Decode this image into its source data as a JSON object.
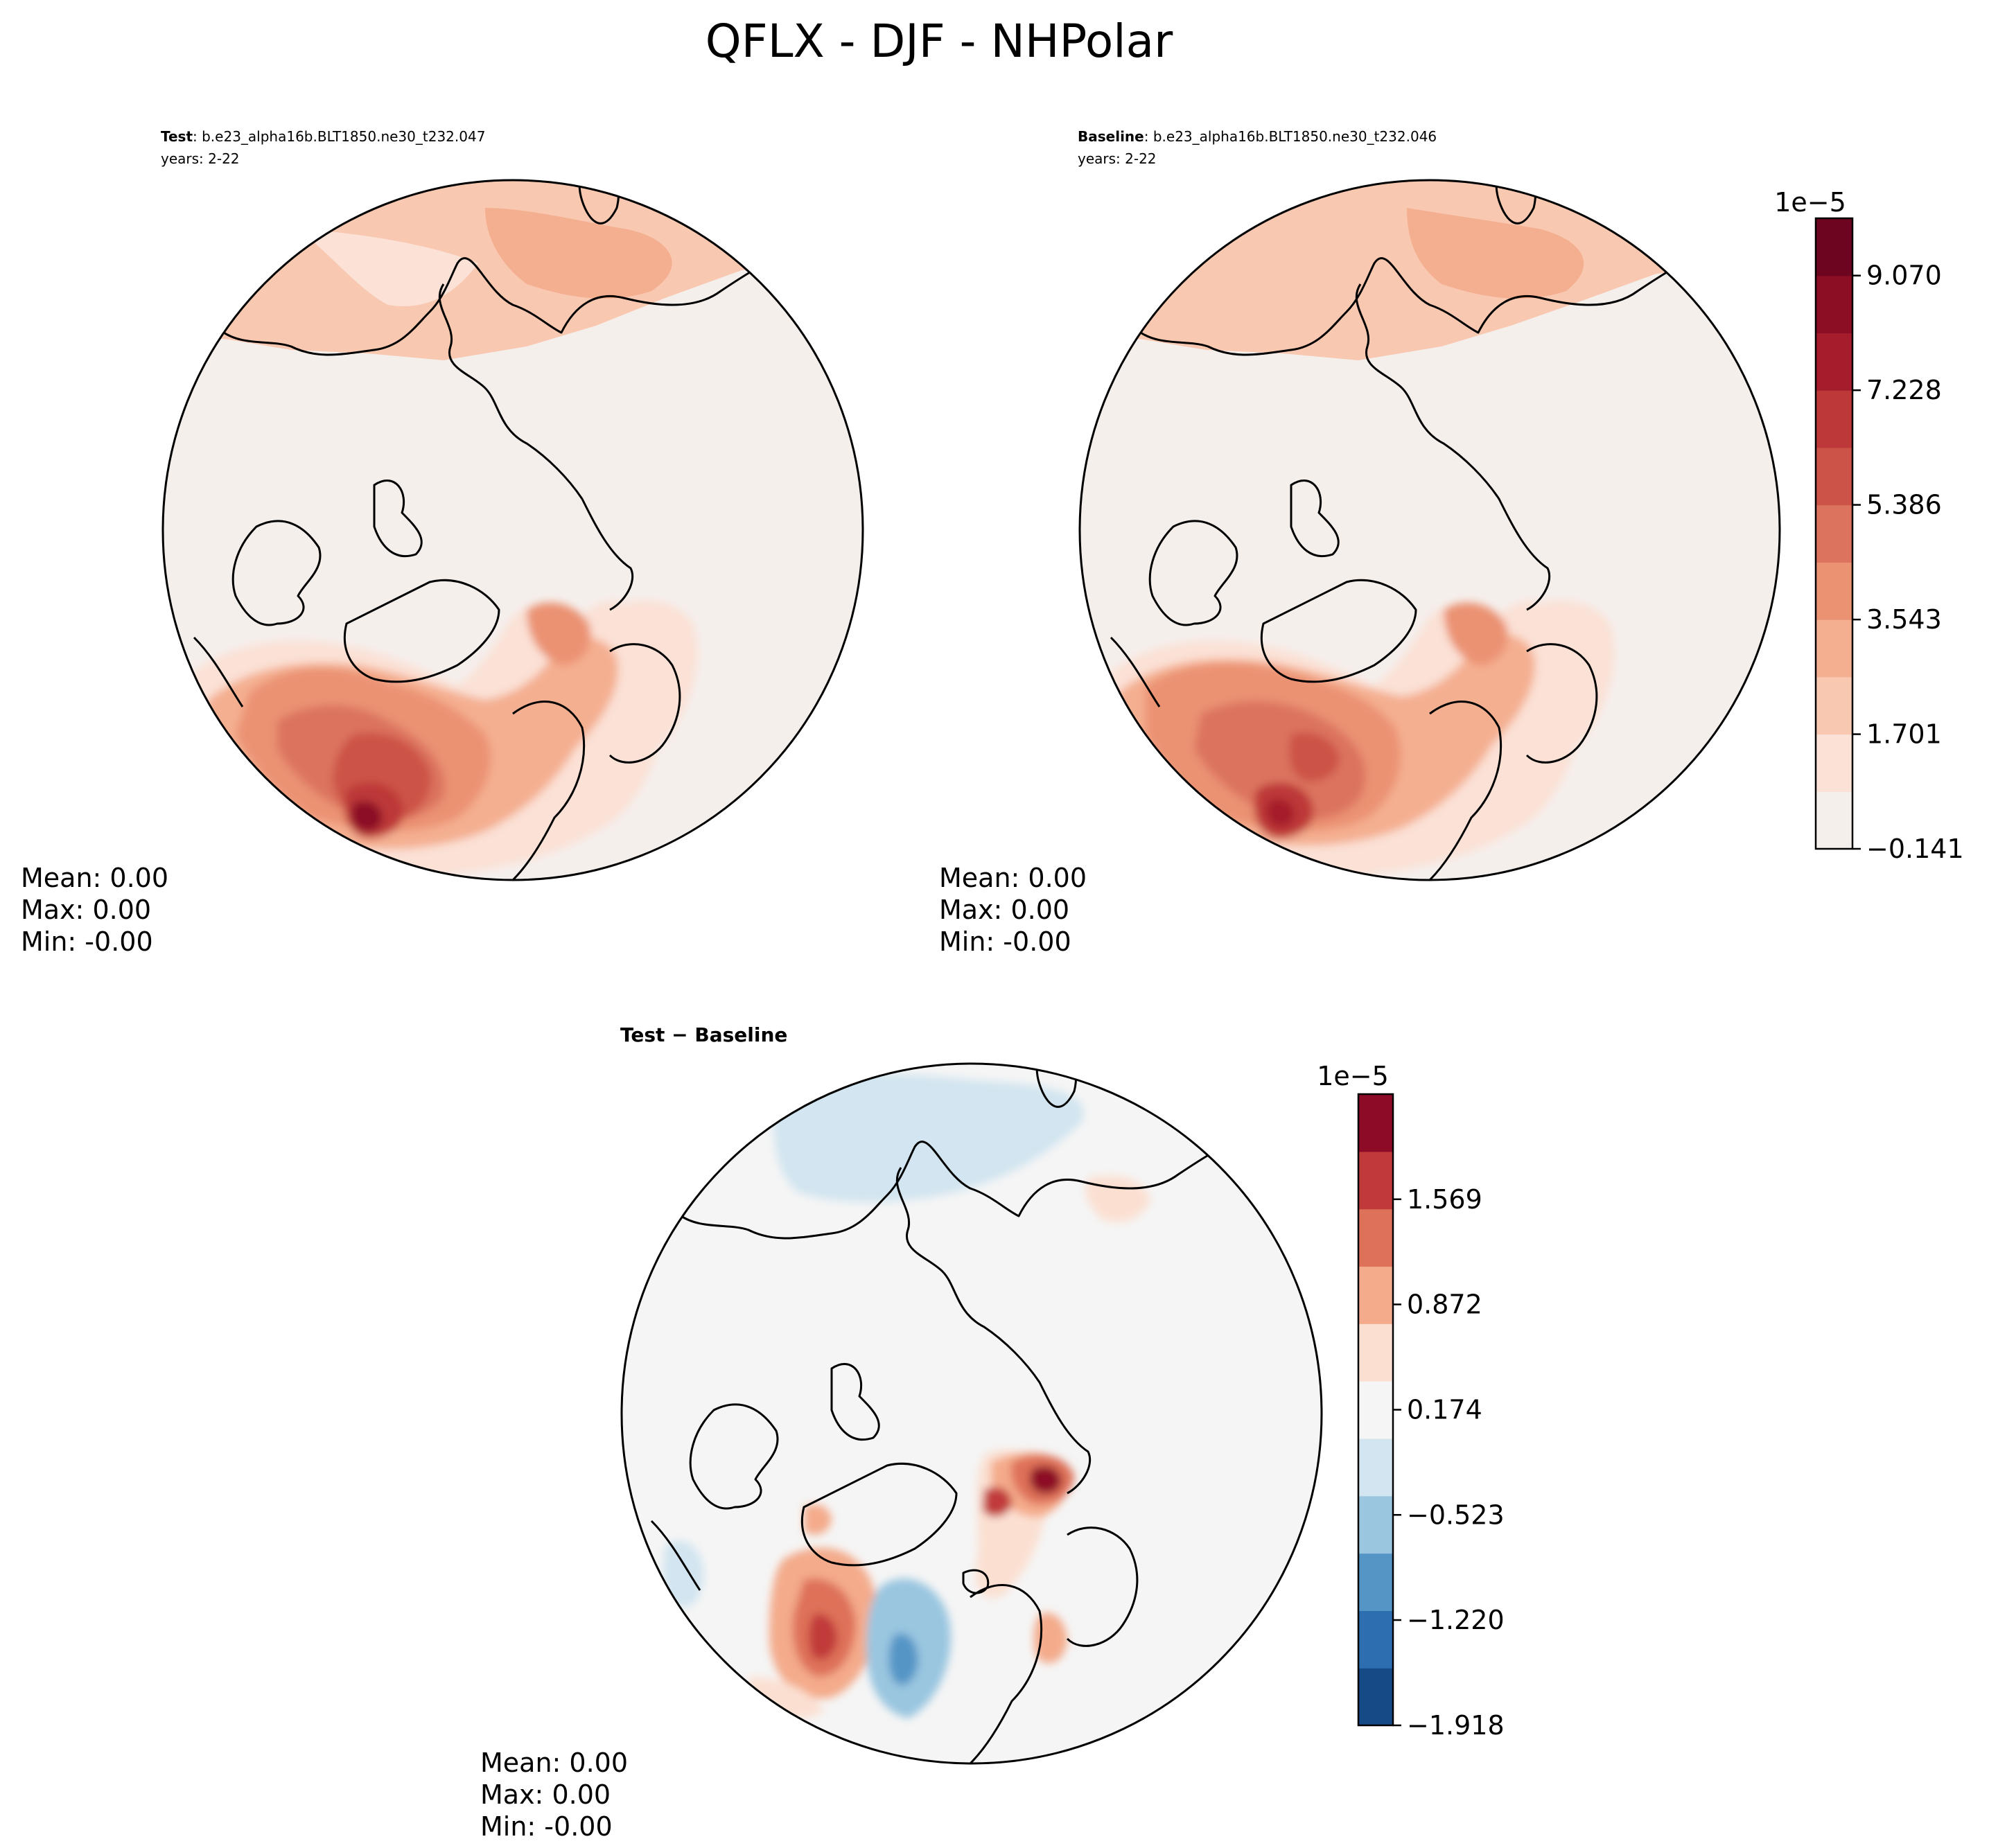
{
  "title": "QFLX - DJF - NHPolar",
  "chart_data": [
    {
      "type": "heatmap",
      "panel": "test",
      "projection": "north-polar-stereographic",
      "header_bold": "Test",
      "header_rest": ": b.e23_alpha16b.BLT1850.ne30_t232.047",
      "header_years": "years: 2-22",
      "stats": [
        "Mean:  0.00",
        "Max:  0.00",
        "Min: -0.00"
      ],
      "shares_colorbar_with": "baseline"
    },
    {
      "type": "heatmap",
      "panel": "baseline",
      "projection": "north-polar-stereographic",
      "header_bold": "Baseline",
      "header_rest": ": b.e23_alpha16b.BLT1850.ne30_t232.046",
      "header_years": "years: 2-22",
      "stats": [
        "Mean:  0.00",
        "Max:  0.00",
        "Min: -0.00"
      ],
      "colorbar": {
        "multiplier": "1e−5",
        "min": -0.141,
        "max": 9.991,
        "tick_values": [
          -0.141,
          1.701,
          3.543,
          5.386,
          7.228,
          9.07
        ],
        "tick_labels": [
          "−0.141",
          "1.701",
          "3.543",
          "5.386",
          "7.228",
          "9.070"
        ],
        "colors": [
          "#f5efec",
          "#fbe1d6",
          "#f9c8b1",
          "#f4af90",
          "#eb9272",
          "#dc735e",
          "#cc5347",
          "#bd3838",
          "#a51c2c",
          "#8b0e25",
          "#6e0520"
        ]
      }
    },
    {
      "type": "heatmap",
      "panel": "difference",
      "projection": "north-polar-stereographic",
      "header_bold": "Test − Baseline",
      "stats": [
        "Mean:  0.00",
        "Max:  0.00",
        "Min: -0.00"
      ],
      "colorbar": {
        "multiplier": "1e−5",
        "min": -1.918,
        "max": 2.266,
        "tick_values": [
          -1.918,
          -1.22,
          -0.523,
          0.174,
          0.872,
          1.569
        ],
        "tick_labels": [
          "−1.918",
          "−1.220",
          "−0.523",
          "0.174",
          "0.872",
          "1.569"
        ],
        "colors": [
          "#144b87",
          "#2d6eb0",
          "#5595c6",
          "#9ac6e0",
          "#d2e5f0",
          "#f5f5f5",
          "#fbe0d2",
          "#f4ab8b",
          "#de7159",
          "#c13a3a",
          "#8d0b27"
        ]
      }
    }
  ]
}
